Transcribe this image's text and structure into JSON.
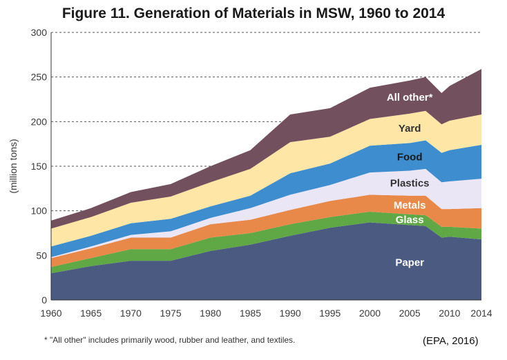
{
  "page": {
    "footnote": "* \"All other\" includes primarily wood, rubber and leather, and textiles.",
    "source": "(EPA, 2016)"
  },
  "chart_data": {
    "type": "area",
    "stacked": true,
    "title": "Figure 11. Generation of Materials in MSW, 1960 to 2014",
    "xlabel": "",
    "ylabel": "(million tons)",
    "xlim": [
      1960,
      2014
    ],
    "ylim": [
      0,
      300
    ],
    "x_ticks": [
      1960,
      1965,
      1970,
      1975,
      1980,
      1985,
      1990,
      1995,
      2000,
      2005,
      2010,
      2014
    ],
    "y_ticks": [
      0,
      50,
      100,
      150,
      200,
      250,
      300
    ],
    "grid": "horizontal dashed",
    "x": [
      1960,
      1965,
      1970,
      1975,
      1980,
      1985,
      1990,
      1995,
      2000,
      2005,
      2007,
      2009,
      2010,
      2014
    ],
    "series": [
      {
        "name": "Paper",
        "color": "#4a5a80",
        "text_color": "#ffffff",
        "values": [
          30,
          38,
          44,
          44,
          55,
          62,
          72,
          81,
          87,
          84,
          83,
          70,
          71,
          68
        ]
      },
      {
        "name": "Glass",
        "color": "#5fa845",
        "text_color": "#ffffff",
        "values": [
          7,
          9,
          13,
          13,
          15,
          13,
          13,
          12,
          12,
          12,
          12,
          12,
          11,
          12
        ]
      },
      {
        "name": "Metals",
        "color": "#e8894a",
        "text_color": "#ffffff",
        "values": [
          10,
          11,
          13,
          13,
          15,
          15,
          16,
          18,
          19,
          21,
          22,
          20,
          20,
          23
        ]
      },
      {
        "name": "Plastics",
        "color": "#ebe6f5",
        "text_color": "#333333",
        "values": [
          1,
          2,
          3,
          7,
          7,
          13,
          17,
          18,
          25,
          28,
          30,
          30,
          31,
          33
        ]
      },
      {
        "name": "Food",
        "color": "#3e8dce",
        "text_color": "#1a1a1a",
        "values": [
          12,
          12,
          13,
          14,
          13,
          14,
          24,
          24,
          30,
          31,
          32,
          33,
          35,
          38
        ]
      },
      {
        "name": "Yard",
        "color": "#fde6a6",
        "text_color": "#333333",
        "values": [
          20,
          21,
          23,
          25,
          27,
          30,
          35,
          30,
          30,
          33,
          33,
          32,
          33,
          34
        ]
      },
      {
        "name": "All other*",
        "color": "#73505d",
        "text_color": "#ffffff",
        "values": [
          9,
          10,
          12,
          14,
          18,
          21,
          31,
          32,
          35,
          37,
          38,
          35,
          39,
          51
        ]
      }
    ]
  }
}
